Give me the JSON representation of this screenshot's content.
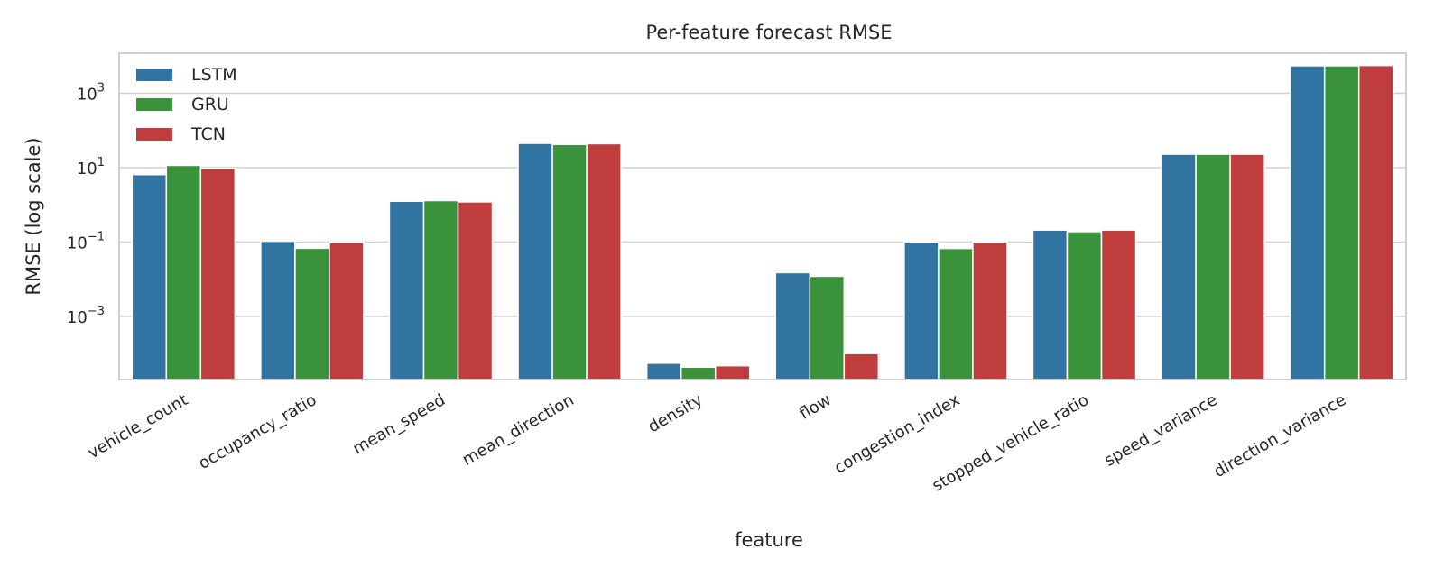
{
  "chart_data": {
    "type": "bar",
    "title": "Per-feature forecast RMSE",
    "xlabel": "feature",
    "ylabel": "RMSE (log scale)",
    "yscale": "log",
    "ylim": [
      2e-05,
      12000
    ],
    "yticks": [
      {
        "value": 0.001,
        "base": "10",
        "exp": "−3"
      },
      {
        "value": 0.1,
        "base": "10",
        "exp": "−1"
      },
      {
        "value": 10,
        "base": "10",
        "exp": "1"
      },
      {
        "value": 1000,
        "base": "10",
        "exp": "3"
      }
    ],
    "grid": true,
    "legend_position": "top-left",
    "categories": [
      "vehicle_count",
      "occupancy_ratio",
      "mean_speed",
      "mean_direction",
      "density",
      "flow",
      "congestion_index",
      "stopped_vehicle_ratio",
      "speed_variance",
      "direction_variance"
    ],
    "series": [
      {
        "name": "LSTM",
        "color": "#3274a1",
        "values": [
          6.5,
          0.105,
          1.25,
          45,
          5.5e-05,
          0.015,
          0.1,
          0.21,
          23,
          5500
        ]
      },
      {
        "name": "GRU",
        "color": "#3a923a",
        "values": [
          11.5,
          0.068,
          1.3,
          42,
          4.3e-05,
          0.012,
          0.067,
          0.19,
          23,
          5500
        ]
      },
      {
        "name": "TCN",
        "color": "#c03d3e",
        "values": [
          9.5,
          0.098,
          1.2,
          44,
          4.7e-05,
          0.0001,
          0.1,
          0.21,
          23,
          5600
        ]
      }
    ]
  }
}
